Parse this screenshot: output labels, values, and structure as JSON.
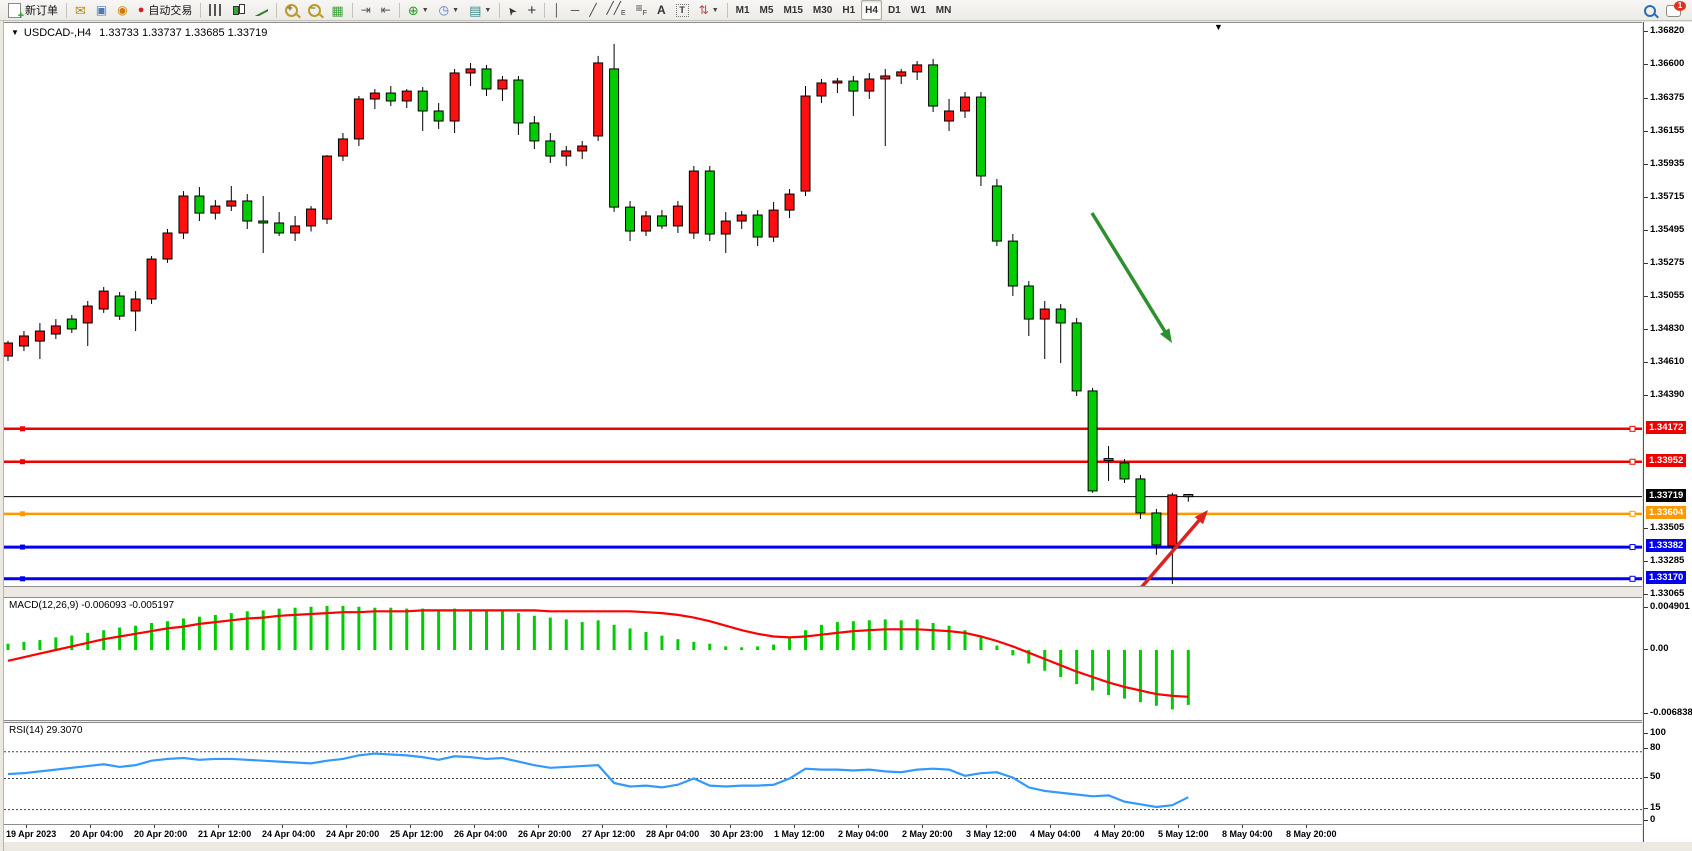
{
  "toolbar": {
    "new_order_label": "新订单",
    "autotrade_label": "自动交易",
    "notification_count": "1",
    "items": [
      {
        "name": "new-order-button",
        "glyph": "doc-plus",
        "label": "新订单"
      },
      {
        "sep": true
      },
      {
        "name": "mail-button",
        "glyph": "mail"
      },
      {
        "name": "terminal-button",
        "glyph": "terminal"
      },
      {
        "name": "signals-button",
        "glyph": "signal"
      },
      {
        "name": "autotrading-button",
        "glyph": "autotrade",
        "label": "自动交易"
      },
      {
        "sep": true
      },
      {
        "name": "bar-chart-button",
        "glyph": "bars"
      },
      {
        "name": "candlestick-chart-button",
        "glyph": "candles"
      },
      {
        "name": "line-chart-button",
        "glyph": "line"
      },
      {
        "sep": true
      },
      {
        "name": "zoom-in-button",
        "glyph": "zoom-in"
      },
      {
        "name": "zoom-out-button",
        "glyph": "zoom-out"
      },
      {
        "name": "tile-windows-button",
        "glyph": "tiles"
      },
      {
        "sep": true
      },
      {
        "name": "auto-scroll-button",
        "glyph": "autoscroll"
      },
      {
        "name": "chart-shift-button",
        "glyph": "chartshift"
      },
      {
        "sep": true
      },
      {
        "name": "indicators-button",
        "glyph": "indicator-plus",
        "caret": true
      },
      {
        "name": "periods-button",
        "glyph": "clock",
        "caret": true
      },
      {
        "name": "templates-button",
        "glyph": "template",
        "caret": true
      },
      {
        "sep": true
      },
      {
        "name": "cursor-button",
        "glyph": "cursor"
      },
      {
        "name": "crosshair-button",
        "glyph": "crosshair"
      },
      {
        "sep": true
      },
      {
        "name": "vertical-line-button",
        "glyph": "vline"
      },
      {
        "name": "horizontal-line-button",
        "glyph": "hline"
      },
      {
        "name": "trendline-button",
        "glyph": "tline"
      },
      {
        "name": "channel-button",
        "glyph": "channel"
      },
      {
        "name": "fibonacci-button",
        "glyph": "fibo"
      },
      {
        "name": "text-button",
        "glyph": "text-a"
      },
      {
        "name": "label-button",
        "glyph": "text-t"
      },
      {
        "name": "arrows-button",
        "glyph": "arrows",
        "caret": true
      },
      {
        "sep": true
      }
    ],
    "timeframes": [
      "M1",
      "M5",
      "M15",
      "M30",
      "H1",
      "H4",
      "D1",
      "W1",
      "MN"
    ],
    "active_timeframe": "H4"
  },
  "chart": {
    "title_symbol": "USDCAD-,H4",
    "title_ohlc": "1.33733 1.33737 1.33685 1.33719",
    "macd_label": "MACD(12,26,9)",
    "macd_values": "-0.006093 -0.005197",
    "rsi_label": "RSI(14)",
    "rsi_value": "29.3070",
    "shift_marker": "▼",
    "dropdown_triangle": "▼"
  },
  "chart_data": {
    "type": "candlestick+indicators",
    "symbol": "USDCAD-",
    "timeframe": "H4",
    "current_bar": {
      "open": 1.33733,
      "high": 1.33737,
      "low": 1.33685,
      "close": 1.33719
    },
    "colors": {
      "up": "#ff0f0f",
      "down": "#00cc00",
      "wick": "#000000",
      "macd_hist": "#00cc00",
      "macd_signal": "#ff0000",
      "rsi_line": "#3399ff",
      "green_arrow": "#2e8f2e",
      "red_arrow": "#dd2222"
    },
    "price_axis": {
      "min": 1.33123,
      "max": 1.36829,
      "ticks": [
        1.3682,
        1.366,
        1.36375,
        1.36155,
        1.35935,
        1.35715,
        1.35495,
        1.35275,
        1.35055,
        1.3483,
        1.3461,
        1.3439,
        1.33505,
        1.33285,
        1.33065
      ],
      "badges": [
        {
          "price": 1.34172,
          "label": "1.34172",
          "color": "#ee0000"
        },
        {
          "price": 1.33952,
          "label": "1.33952",
          "color": "#ee0000"
        },
        {
          "price": 1.33719,
          "label": "1.33719",
          "color": "#000000"
        },
        {
          "price": 1.33604,
          "label": "1.33604",
          "color": "#ff9900"
        },
        {
          "price": 1.33382,
          "label": "1.33382",
          "color": "#0000ee"
        },
        {
          "price": 1.3317,
          "label": "1.33170",
          "color": "#0000ee"
        }
      ]
    },
    "hlines": [
      {
        "name": "resistance-line-1",
        "price": 1.34172,
        "color": "#ee0000",
        "width": 2.5
      },
      {
        "name": "resistance-line-2",
        "price": 1.33952,
        "color": "#ee0000",
        "width": 2.5
      },
      {
        "name": "bid-price-line",
        "price": 1.33719,
        "color": "#000000",
        "width": 1
      },
      {
        "name": "support-line-orange",
        "price": 1.33604,
        "color": "#ff9900",
        "width": 2.5
      },
      {
        "name": "support-line-blue-1",
        "price": 1.33382,
        "color": "#0000ee",
        "width": 3
      },
      {
        "name": "support-line-blue-2",
        "price": 1.3317,
        "color": "#0000ee",
        "width": 3
      }
    ],
    "arrows": [
      {
        "name": "downtrend-arrow",
        "color": "#2e8f2e",
        "from": [
          1092,
          212
        ],
        "to": [
          1172,
          342
        ]
      },
      {
        "name": "reversal-arrow",
        "color": "#dd2222",
        "from": [
          1140,
          588
        ],
        "to": [
          1208,
          509
        ]
      }
    ],
    "time_labels": [
      "19 Apr 2023",
      "20 Apr 04:00",
      "20 Apr 20:00",
      "21 Apr 12:00",
      "24 Apr 04:00",
      "24 Apr 20:00",
      "25 Apr 12:00",
      "26 Apr 04:00",
      "26 Apr 20:00",
      "27 Apr 12:00",
      "28 Apr 04:00",
      "30 Apr 23:00",
      "1 May 12:00",
      "2 May 04:00",
      "2 May 20:00",
      "3 May 12:00",
      "4 May 04:00",
      "4 May 20:00",
      "5 May 12:00",
      "8 May 04:00",
      "8 May 20:00"
    ],
    "candles": [
      [
        1.34658,
        1.34759,
        1.34625,
        1.34745
      ],
      [
        1.34725,
        1.34825,
        1.34691,
        1.34792
      ],
      [
        1.34758,
        1.34879,
        1.34638,
        1.34825
      ],
      [
        1.34805,
        1.34905,
        1.34772,
        1.34859
      ],
      [
        1.34905,
        1.34932,
        1.34812,
        1.34839
      ],
      [
        1.34879,
        1.35026,
        1.34725,
        1.34992
      ],
      [
        1.34972,
        1.35119,
        1.34946,
        1.35092
      ],
      [
        1.35059,
        1.35086,
        1.34899,
        1.34925
      ],
      [
        1.34959,
        1.35092,
        1.34825,
        1.35039
      ],
      [
        1.35039,
        1.35326,
        1.35006,
        1.35306
      ],
      [
        1.35306,
        1.35507,
        1.3528,
        1.3548
      ],
      [
        1.3548,
        1.3576,
        1.3544,
        1.35727
      ],
      [
        1.35727,
        1.35787,
        1.3556,
        1.35613
      ],
      [
        1.35613,
        1.357,
        1.3557,
        1.3566
      ],
      [
        1.3566,
        1.35794,
        1.35627,
        1.35694
      ],
      [
        1.35694,
        1.3574,
        1.35507,
        1.3556
      ],
      [
        1.3556,
        1.35727,
        1.35346,
        1.35547
      ],
      [
        1.35547,
        1.3562,
        1.3546,
        1.3548
      ],
      [
        1.3548,
        1.35594,
        1.35426,
        1.35527
      ],
      [
        1.35527,
        1.3566,
        1.3549,
        1.3564
      ],
      [
        1.35573,
        1.36,
        1.3554,
        1.35994
      ],
      [
        1.35994,
        1.36148,
        1.35961,
        1.36108
      ],
      [
        1.36108,
        1.36395,
        1.36061,
        1.36375
      ],
      [
        1.36375,
        1.36442,
        1.36308,
        1.36415
      ],
      [
        1.36415,
        1.36462,
        1.36328,
        1.36362
      ],
      [
        1.36362,
        1.36442,
        1.36315,
        1.36428
      ],
      [
        1.36428,
        1.36455,
        1.36161,
        1.36295
      ],
      [
        1.36295,
        1.36348,
        1.36175,
        1.36228
      ],
      [
        1.36228,
        1.36576,
        1.36148,
        1.36549
      ],
      [
        1.36549,
        1.36616,
        1.36462,
        1.36576
      ],
      [
        1.36576,
        1.36603,
        1.36395,
        1.36442
      ],
      [
        1.36442,
        1.36529,
        1.36362,
        1.36502
      ],
      [
        1.36502,
        1.36529,
        1.36135,
        1.36215
      ],
      [
        1.36215,
        1.36262,
        1.36041,
        1.36095
      ],
      [
        1.36095,
        1.36148,
        1.35948,
        1.35994
      ],
      [
        1.35994,
        1.36061,
        1.35927,
        1.36028
      ],
      [
        1.36028,
        1.36095,
        1.35974,
        1.36061
      ],
      [
        1.36128,
        1.36663,
        1.36095,
        1.36616
      ],
      [
        1.36576,
        1.36743,
        1.35621,
        1.35653
      ],
      [
        1.35653,
        1.35694,
        1.35426,
        1.35493
      ],
      [
        1.35493,
        1.35627,
        1.3546,
        1.35594
      ],
      [
        1.35594,
        1.35633,
        1.35507,
        1.35527
      ],
      [
        1.35527,
        1.35694,
        1.3548,
        1.3566
      ],
      [
        1.3548,
        1.35928,
        1.3544,
        1.35894
      ],
      [
        1.35894,
        1.35928,
        1.35426,
        1.35473
      ],
      [
        1.35473,
        1.3562,
        1.35346,
        1.3556
      ],
      [
        1.3556,
        1.35627,
        1.35507,
        1.356
      ],
      [
        1.356,
        1.35633,
        1.35393,
        1.35453
      ],
      [
        1.35453,
        1.35687,
        1.3542,
        1.35633
      ],
      [
        1.35633,
        1.35774,
        1.3558,
        1.3574
      ],
      [
        1.3576,
        1.36462,
        1.35727,
        1.36395
      ],
      [
        1.36395,
        1.36509,
        1.36348,
        1.36482
      ],
      [
        1.36482,
        1.36516,
        1.36415,
        1.36495
      ],
      [
        1.36495,
        1.36529,
        1.36262,
        1.36428
      ],
      [
        1.36428,
        1.36549,
        1.36375,
        1.36509
      ],
      [
        1.36509,
        1.36576,
        1.36061,
        1.36529
      ],
      [
        1.36529,
        1.36576,
        1.36475,
        1.36556
      ],
      [
        1.36556,
        1.36629,
        1.36502,
        1.36603
      ],
      [
        1.36603,
        1.36643,
        1.36288,
        1.36328
      ],
      [
        1.36228,
        1.36375,
        1.36161,
        1.36295
      ],
      [
        1.36295,
        1.36422,
        1.36248,
        1.36388
      ],
      [
        1.36388,
        1.36422,
        1.35794,
        1.35861
      ],
      [
        1.35794,
        1.35841,
        1.35393,
        1.35426
      ],
      [
        1.35426,
        1.35473,
        1.35059,
        1.35126
      ],
      [
        1.35126,
        1.35159,
        1.34792,
        1.34905
      ],
      [
        1.34905,
        1.35026,
        1.34638,
        1.34972
      ],
      [
        1.34972,
        1.35006,
        1.34611,
        1.34879
      ],
      [
        1.34879,
        1.34912,
        1.34391,
        1.34425
      ],
      [
        1.34425,
        1.34445,
        1.33744,
        1.33757
      ],
      [
        1.33973,
        1.34057,
        1.33824,
        1.3396
      ],
      [
        1.33944,
        1.3397,
        1.3381,
        1.33837
      ],
      [
        1.33837,
        1.33864,
        1.3357,
        1.3361
      ],
      [
        1.3361,
        1.33637,
        1.3333,
        1.33396
      ],
      [
        1.33389,
        1.33744,
        1.33135,
        1.3373
      ],
      [
        1.33733,
        1.33737,
        1.33685,
        1.33719
      ]
    ],
    "macd": {
      "label": "MACD(12,26,9)",
      "main_value": -0.006093,
      "signal_value": -0.005197,
      "scale_max_label": "0.004901",
      "scale_zero_label": "0.00",
      "scale_min_label": "-0.006838",
      "histogram": [
        0.0007,
        0.0009,
        0.0011,
        0.0014,
        0.0016,
        0.0019,
        0.0022,
        0.0025,
        0.0027,
        0.003,
        0.0032,
        0.0035,
        0.0037,
        0.0039,
        0.0041,
        0.0043,
        0.0044,
        0.0046,
        0.0047,
        0.0048,
        0.0049,
        0.0049,
        0.0048,
        0.0047,
        0.0047,
        0.0046,
        0.0046,
        0.0045,
        0.0046,
        0.0045,
        0.0044,
        0.0043,
        0.0041,
        0.0038,
        0.0036,
        0.0034,
        0.0031,
        0.0033,
        0.0028,
        0.0024,
        0.002,
        0.0016,
        0.0012,
        0.0009,
        0.0007,
        0.0004,
        0.0003,
        0.0004,
        0.0006,
        0.0013,
        0.0022,
        0.0028,
        0.0031,
        0.0032,
        0.0033,
        0.0034,
        0.0033,
        0.0034,
        0.003,
        0.0027,
        0.0022,
        0.0014,
        0.0005,
        -0.0006,
        -0.0015,
        -0.0023,
        -0.003,
        -0.0038,
        -0.0045,
        -0.005,
        -0.0054,
        -0.0058,
        -0.0062,
        -0.0066,
        -0.0061
      ],
      "signal": [
        -0.0012,
        -0.0008,
        -0.0004,
        0.0,
        0.0004,
        0.0008,
        0.0012,
        0.0015,
        0.0018,
        0.0021,
        0.0024,
        0.0026,
        0.0029,
        0.0031,
        0.0033,
        0.0035,
        0.0036,
        0.0038,
        0.0039,
        0.004,
        0.0041,
        0.0042,
        0.0042,
        0.0043,
        0.0043,
        0.0043,
        0.0044,
        0.0044,
        0.0044,
        0.0044,
        0.0044,
        0.0044,
        0.0044,
        0.0044,
        0.0043,
        0.0043,
        0.0043,
        0.0043,
        0.0043,
        0.0043,
        0.0042,
        0.0041,
        0.0039,
        0.0036,
        0.0032,
        0.0027,
        0.0022,
        0.0018,
        0.0015,
        0.0014,
        0.0015,
        0.0017,
        0.0019,
        0.0021,
        0.0022,
        0.0023,
        0.0023,
        0.0023,
        0.0022,
        0.0021,
        0.0019,
        0.0015,
        0.001,
        0.0004,
        -0.0003,
        -0.001,
        -0.0017,
        -0.0024,
        -0.003,
        -0.0036,
        -0.0041,
        -0.0045,
        -0.0049,
        -0.0051,
        -0.0052
      ]
    },
    "rsi": {
      "label": "RSI(14)",
      "value": 29.307,
      "scale_labels": [
        "100",
        "80",
        "50",
        "15",
        "0"
      ],
      "dashed_levels": [
        80,
        50,
        15
      ],
      "values": [
        55,
        56,
        58,
        60,
        62,
        64,
        66,
        63,
        65,
        70,
        72,
        73,
        71,
        72,
        72,
        71,
        70,
        69,
        68,
        67,
        70,
        72,
        76,
        78,
        77,
        76,
        74,
        71,
        75,
        74,
        72,
        73,
        69,
        65,
        62,
        63,
        64,
        65,
        45,
        41,
        42,
        40,
        43,
        50,
        42,
        41,
        42,
        42,
        43,
        50,
        61,
        60,
        60,
        59,
        60,
        58,
        57,
        60,
        61,
        60,
        53,
        56,
        57,
        51,
        40,
        36,
        34,
        32,
        30,
        31,
        24,
        21,
        18,
        20,
        29
      ]
    }
  }
}
